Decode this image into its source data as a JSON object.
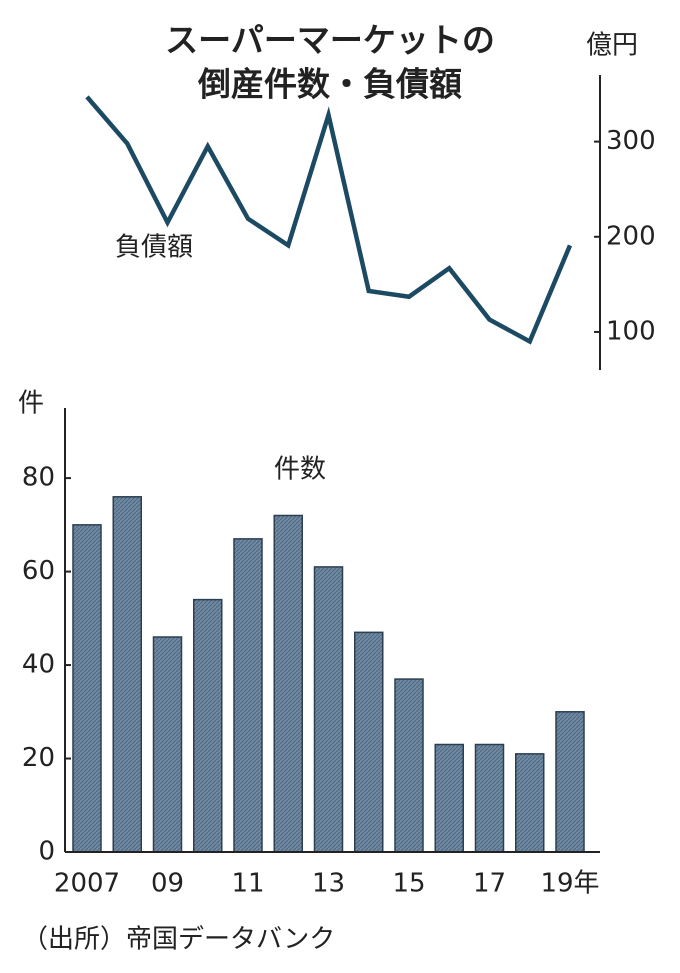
{
  "title": [
    "スーパーマーケットの",
    "倒産件数・負債額"
  ],
  "source": "（出所）帝国データバンク",
  "chart_data": [
    {
      "type": "line",
      "series_label": "負債額",
      "y_label": "億円",
      "y_axis_position": "right",
      "color": "#1d4a63",
      "values": [
        347,
        298,
        215,
        295,
        219,
        191,
        328,
        143,
        137,
        167,
        113,
        90,
        191
      ],
      "ylim": [
        60,
        370
      ],
      "yticks": [
        100,
        200,
        300
      ]
    },
    {
      "type": "bar",
      "series_label": "件数",
      "y_label": "件",
      "y_axis_position": "left",
      "color": "#6a859e",
      "categories": [
        "2007",
        null,
        "09",
        null,
        "11",
        null,
        "13",
        null,
        "15",
        null,
        "17",
        null,
        "19年"
      ],
      "values": [
        70,
        76,
        46,
        54,
        67,
        72,
        61,
        47,
        37,
        23,
        23,
        21,
        30
      ],
      "ylim": [
        0,
        95
      ],
      "yticks": [
        0,
        20,
        40,
        60,
        80
      ]
    }
  ]
}
